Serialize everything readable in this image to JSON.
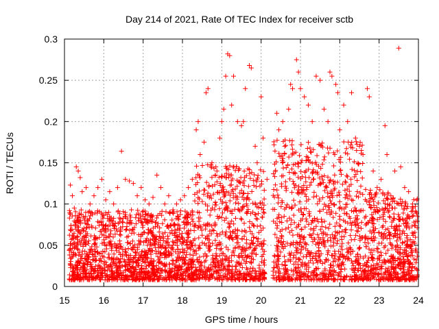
{
  "chart_data": {
    "type": "scatter",
    "title": "Day 214 of 2021, Rate Of TEC Index for receiver sctb",
    "xlabel": "GPS time / hours",
    "ylabel": "ROTI / TECUs",
    "xlim": [
      15,
      24
    ],
    "ylim": [
      0,
      0.3
    ],
    "x_ticks": [
      15,
      16,
      17,
      18,
      19,
      20,
      21,
      22,
      23,
      24
    ],
    "x_tick_labels": [
      "15",
      "16",
      "17",
      "18",
      "19",
      "20",
      "21",
      "22",
      "23",
      "24"
    ],
    "y_ticks": [
      0,
      0.05,
      0.1,
      0.15,
      0.2,
      0.25,
      0.3
    ],
    "y_tick_labels": [
      "0",
      "0.05",
      "0.1",
      "0.15",
      "0.2",
      "0.25",
      "0.3"
    ],
    "grid": true,
    "marker": "plus",
    "color": "#ff0000",
    "series": [
      {
        "name": "ROTI",
        "points": [
          [
            15.15,
            0.123
          ],
          [
            15.2,
            0.11
          ],
          [
            15.25,
            0.095
          ],
          [
            15.3,
            0.145
          ],
          [
            15.35,
            0.14
          ],
          [
            15.4,
            0.132
          ],
          [
            15.45,
            0.115
          ],
          [
            15.55,
            0.12
          ],
          [
            15.65,
            0.1
          ],
          [
            15.75,
            0.11
          ],
          [
            15.85,
            0.12
          ],
          [
            15.95,
            0.13
          ],
          [
            16.05,
            0.105
          ],
          [
            16.15,
            0.115
          ],
          [
            16.25,
            0.1
          ],
          [
            16.35,
            0.12
          ],
          [
            16.45,
            0.164
          ],
          [
            16.55,
            0.13
          ],
          [
            16.65,
            0.128
          ],
          [
            16.75,
            0.125
          ],
          [
            16.85,
            0.11
          ],
          [
            16.95,
            0.12
          ],
          [
            17.05,
            0.105
          ],
          [
            17.15,
            0.1
          ],
          [
            17.25,
            0.108
          ],
          [
            17.35,
            0.135
          ],
          [
            17.45,
            0.12
          ],
          [
            17.55,
            0.1
          ],
          [
            17.65,
            0.11
          ],
          [
            17.75,
            0.09
          ],
          [
            17.85,
            0.1
          ],
          [
            17.95,
            0.105
          ],
          [
            18.05,
            0.11
          ],
          [
            18.15,
            0.12
          ],
          [
            18.25,
            0.13
          ],
          [
            18.35,
            0.19
          ],
          [
            18.4,
            0.2
          ],
          [
            18.45,
            0.16
          ],
          [
            18.55,
            0.175
          ],
          [
            18.6,
            0.235
          ],
          [
            18.65,
            0.24
          ],
          [
            18.75,
            0.15
          ],
          [
            18.85,
            0.145
          ],
          [
            18.95,
            0.18
          ],
          [
            19.0,
            0.2
          ],
          [
            19.05,
            0.215
          ],
          [
            19.1,
            0.255
          ],
          [
            19.15,
            0.282
          ],
          [
            19.2,
            0.28
          ],
          [
            19.25,
            0.22
          ],
          [
            19.3,
            0.255
          ],
          [
            19.4,
            0.2
          ],
          [
            19.5,
            0.195
          ],
          [
            19.55,
            0.2
          ],
          [
            19.6,
            0.24
          ],
          [
            19.7,
            0.268
          ],
          [
            19.75,
            0.265
          ],
          [
            19.85,
            0.17
          ],
          [
            19.9,
            0.15
          ],
          [
            20.0,
            0.23
          ],
          [
            20.05,
            0.18
          ],
          [
            20.15,
            0.13
          ],
          [
            20.4,
            0.21
          ],
          [
            20.45,
            0.19
          ],
          [
            20.55,
            0.2
          ],
          [
            20.6,
            0.17
          ],
          [
            20.7,
            0.215
          ],
          [
            20.75,
            0.245
          ],
          [
            20.8,
            0.24
          ],
          [
            20.9,
            0.275
          ],
          [
            20.95,
            0.26
          ],
          [
            21.0,
            0.24
          ],
          [
            21.1,
            0.23
          ],
          [
            21.2,
            0.22
          ],
          [
            21.3,
            0.2
          ],
          [
            21.4,
            0.255
          ],
          [
            21.5,
            0.25
          ],
          [
            21.6,
            0.215
          ],
          [
            21.7,
            0.2
          ],
          [
            21.75,
            0.26
          ],
          [
            21.8,
            0.255
          ],
          [
            21.9,
            0.245
          ],
          [
            21.95,
            0.235
          ],
          [
            22.0,
            0.19
          ],
          [
            22.1,
            0.22
          ],
          [
            22.2,
            0.2
          ],
          [
            22.3,
            0.235
          ],
          [
            22.4,
            0.18
          ],
          [
            22.5,
            0.17
          ],
          [
            22.55,
            0.165
          ],
          [
            22.7,
            0.24
          ],
          [
            22.75,
            0.23
          ],
          [
            22.85,
            0.14
          ],
          [
            22.95,
            0.12
          ],
          [
            23.05,
            0.13
          ],
          [
            23.15,
            0.195
          ],
          [
            23.2,
            0.16
          ],
          [
            23.3,
            0.11
          ],
          [
            23.4,
            0.14
          ],
          [
            23.5,
            0.289
          ],
          [
            23.55,
            0.145
          ],
          [
            23.65,
            0.12
          ],
          [
            23.75,
            0.115
          ],
          [
            23.85,
            0.1
          ],
          [
            23.95,
            0.09
          ]
        ]
      }
    ]
  }
}
